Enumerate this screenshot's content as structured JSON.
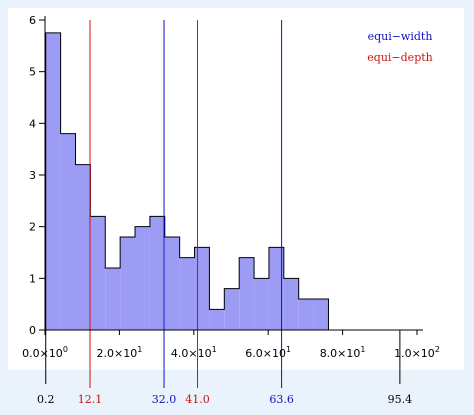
{
  "chart_data": {
    "type": "histogram",
    "title": "",
    "xlabel": "",
    "ylabel": "",
    "xlim": [
      0,
      100
    ],
    "ylim": [
      0,
      6
    ],
    "grid": false,
    "legend_placement": "top-right",
    "y_ticks": [
      "0",
      "1",
      "2",
      "3",
      "4",
      "5",
      "6"
    ],
    "y_tick_values": [
      0,
      1,
      2,
      3,
      4,
      5,
      6
    ],
    "x_ticks": [
      {
        "value": 0,
        "base": "0.0×10",
        "exp": "0"
      },
      {
        "value": 20,
        "base": "2.0×10",
        "exp": "1"
      },
      {
        "value": 40,
        "base": "4.0×10",
        "exp": "1"
      },
      {
        "value": 60,
        "base": "6.0×10",
        "exp": "1"
      },
      {
        "value": 80,
        "base": "8.0×10",
        "exp": "1"
      },
      {
        "value": 100,
        "base": "1.0×10",
        "exp": "2"
      }
    ],
    "bins": [
      {
        "x0": 0.2,
        "x1": 4.2,
        "value": 5.75
      },
      {
        "x0": 4.2,
        "x1": 8.2,
        "value": 3.8
      },
      {
        "x0": 8.2,
        "x1": 12.2,
        "value": 3.2
      },
      {
        "x0": 12.2,
        "x1": 16.2,
        "value": 2.2
      },
      {
        "x0": 16.2,
        "x1": 20.2,
        "value": 1.2
      },
      {
        "x0": 20.2,
        "x1": 24.2,
        "value": 1.8
      },
      {
        "x0": 24.2,
        "x1": 28.2,
        "value": 2.0
      },
      {
        "x0": 28.2,
        "x1": 32.2,
        "value": 2.2
      },
      {
        "x0": 32.2,
        "x1": 36.2,
        "value": 1.8
      },
      {
        "x0": 36.2,
        "x1": 40.2,
        "value": 1.4
      },
      {
        "x0": 40.2,
        "x1": 44.2,
        "value": 1.6
      },
      {
        "x0": 44.2,
        "x1": 48.2,
        "value": 0.4
      },
      {
        "x0": 48.2,
        "x1": 52.2,
        "value": 0.8
      },
      {
        "x0": 52.2,
        "x1": 56.2,
        "value": 1.4
      },
      {
        "x0": 56.2,
        "x1": 60.2,
        "value": 1.0
      },
      {
        "x0": 60.2,
        "x1": 64.2,
        "value": 1.6
      },
      {
        "x0": 64.2,
        "x1": 68.2,
        "value": 1.0
      },
      {
        "x0": 68.2,
        "x1": 72.2,
        "value": 0.6
      },
      {
        "x0": 72.2,
        "x1": 76.2,
        "value": 0.6
      }
    ],
    "bin_edges_rendered": true,
    "boundary_lines": [
      {
        "value": 0.2,
        "label": "0.2",
        "method": "min"
      },
      {
        "value": 12.1,
        "label": "12.1",
        "method": "equi-depth"
      },
      {
        "value": 32.0,
        "label": "32.0",
        "method": "equi-width"
      },
      {
        "value": 41.0,
        "label": "41.0",
        "method": "equi-depth"
      },
      {
        "value": 63.6,
        "label": "63.6",
        "method": "equi-width"
      },
      {
        "value": 95.4,
        "label": "95.4",
        "method": "max"
      }
    ],
    "legend": [
      {
        "name": "equi−width",
        "color": "#1010c8"
      },
      {
        "name": "equi−depth",
        "color": "#d01010"
      }
    ],
    "colors": {
      "bar_fill": "#9c9cf4",
      "bar_stroke": "#000000",
      "equi_width": "#1010c8",
      "equi_depth": "#d01010",
      "plot_bg": "#ffffff",
      "page_bg": "#eaf3fb"
    }
  }
}
